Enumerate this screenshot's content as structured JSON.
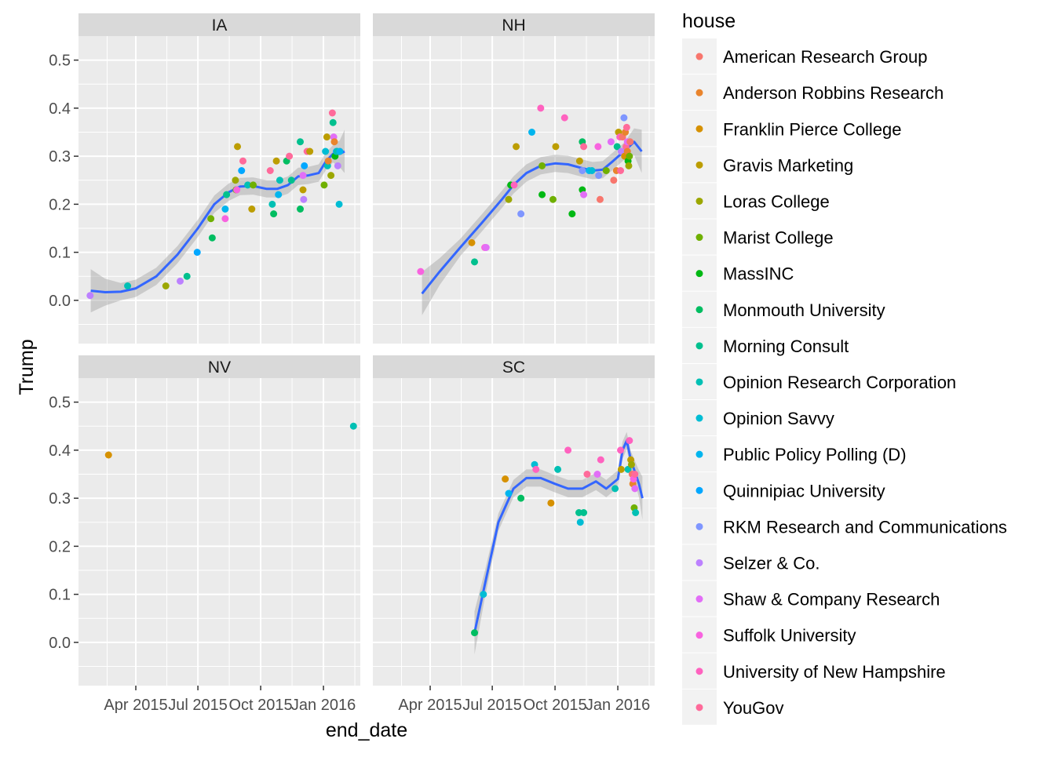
{
  "chart_data": {
    "type": "scatter",
    "xlabel": "end_date",
    "ylabel": "Trump",
    "x_ticks": [
      "Apr 2015",
      "Jul 2015",
      "Oct 2015",
      "Jan 2016"
    ],
    "y_ticks": [
      "0.0",
      "0.1",
      "0.2",
      "0.3",
      "0.4",
      "0.5"
    ],
    "ylim": [
      -0.09,
      0.55
    ],
    "grid": true,
    "legend": {
      "title": "house",
      "placement": "right",
      "entries": [
        {
          "name": "American Research Group",
          "color": "#F8766D"
        },
        {
          "name": "Anderson Robbins Research",
          "color": "#E9842C"
        },
        {
          "name": "Franklin Pierce College",
          "color": "#D69100"
        },
        {
          "name": "Gravis Marketing",
          "color": "#BC9D00"
        },
        {
          "name": "Loras College",
          "color": "#9CA700"
        },
        {
          "name": "Marist College",
          "color": "#6FB000"
        },
        {
          "name": "MassINC",
          "color": "#00B813"
        },
        {
          "name": "Monmouth University",
          "color": "#00BD61"
        },
        {
          "name": "Morning Consult",
          "color": "#00C08E"
        },
        {
          "name": "Opinion Research Corporation",
          "color": "#00C0B4"
        },
        {
          "name": "Opinion Savvy",
          "color": "#00BDD4"
        },
        {
          "name": "Public Policy Polling (D)",
          "color": "#00B5EE"
        },
        {
          "name": "Quinnipiac University",
          "color": "#00A7FF"
        },
        {
          "name": "RKM Research and Communications",
          "color": "#7F96FF"
        },
        {
          "name": "Selzer & Co.",
          "color": "#BC81FF"
        },
        {
          "name": "Shaw & Company Research",
          "color": "#E26EF7"
        },
        {
          "name": "Suffolk University",
          "color": "#F863DF"
        },
        {
          "name": "University of New Hampshire",
          "color": "#FF62BF"
        },
        {
          "name": "YouGov",
          "color": "#FF6A9A"
        }
      ]
    },
    "smooth_color": "#3366FF",
    "band_color": "#999999",
    "facets": [
      {
        "label": "IA",
        "smooth": [
          [
            "2015-01-25",
            0.02
          ],
          [
            "2015-02-15",
            0.017
          ],
          [
            "2015-03-10",
            0.018
          ],
          [
            "2015-04-01",
            0.025
          ],
          [
            "2015-05-01",
            0.05
          ],
          [
            "2015-06-01",
            0.095
          ],
          [
            "2015-07-01",
            0.15
          ],
          [
            "2015-07-25",
            0.2
          ],
          [
            "2015-08-15",
            0.225
          ],
          [
            "2015-09-01",
            0.237
          ],
          [
            "2015-09-20",
            0.238
          ],
          [
            "2015-10-10",
            0.232
          ],
          [
            "2015-10-25",
            0.232
          ],
          [
            "2015-11-10",
            0.24
          ],
          [
            "2015-11-25",
            0.258
          ],
          [
            "2015-12-10",
            0.26
          ],
          [
            "2015-12-25",
            0.265
          ],
          [
            "2016-01-05",
            0.29
          ],
          [
            "2016-01-15",
            0.305
          ],
          [
            "2016-01-25",
            0.305
          ],
          [
            "2016-02-01",
            0.31
          ]
        ],
        "points": [
          {
            "x": "2015-01-24",
            "y": 0.01,
            "c": 14
          },
          {
            "x": "2015-03-20",
            "y": 0.03,
            "c": 9
          },
          {
            "x": "2015-05-15",
            "y": 0.03,
            "c": 4
          },
          {
            "x": "2015-06-05",
            "y": 0.04,
            "c": 14
          },
          {
            "x": "2015-06-15",
            "y": 0.05,
            "c": 8
          },
          {
            "x": "2015-06-30",
            "y": 0.1,
            "c": 12
          },
          {
            "x": "2015-07-20",
            "y": 0.17,
            "c": 5
          },
          {
            "x": "2015-07-22",
            "y": 0.13,
            "c": 7
          },
          {
            "x": "2015-08-10",
            "y": 0.19,
            "c": 11
          },
          {
            "x": "2015-08-10",
            "y": 0.17,
            "c": 16
          },
          {
            "x": "2015-08-12",
            "y": 0.22,
            "c": 8
          },
          {
            "x": "2015-08-25",
            "y": 0.25,
            "c": 4
          },
          {
            "x": "2015-08-26",
            "y": 0.23,
            "c": 5
          },
          {
            "x": "2015-08-28",
            "y": 0.32,
            "c": 3
          },
          {
            "x": "2015-08-27",
            "y": 0.23,
            "c": 16
          },
          {
            "x": "2015-09-03",
            "y": 0.27,
            "c": 12
          },
          {
            "x": "2015-09-05",
            "y": 0.29,
            "c": 18
          },
          {
            "x": "2015-09-12",
            "y": 0.24,
            "c": 9
          },
          {
            "x": "2015-09-18",
            "y": 0.19,
            "c": 3
          },
          {
            "x": "2015-09-20",
            "y": 0.24,
            "c": 5
          },
          {
            "x": "2015-10-15",
            "y": 0.27,
            "c": 18
          },
          {
            "x": "2015-10-18",
            "y": 0.2,
            "c": 9
          },
          {
            "x": "2015-10-20",
            "y": 0.18,
            "c": 7
          },
          {
            "x": "2015-10-24",
            "y": 0.29,
            "c": 3
          },
          {
            "x": "2015-10-27",
            "y": 0.22,
            "c": 11
          },
          {
            "x": "2015-10-29",
            "y": 0.25,
            "c": 9
          },
          {
            "x": "2015-11-08",
            "y": 0.29,
            "c": 7
          },
          {
            "x": "2015-11-12",
            "y": 0.3,
            "c": 18
          },
          {
            "x": "2015-11-15",
            "y": 0.25,
            "c": 8
          },
          {
            "x": "2015-11-28",
            "y": 0.33,
            "c": 8
          },
          {
            "x": "2015-11-28",
            "y": 0.19,
            "c": 7
          },
          {
            "x": "2015-12-02",
            "y": 0.26,
            "c": 15
          },
          {
            "x": "2015-12-02",
            "y": 0.23,
            "c": 3
          },
          {
            "x": "2015-12-03",
            "y": 0.21,
            "c": 14
          },
          {
            "x": "2015-12-04",
            "y": 0.28,
            "c": 12
          },
          {
            "x": "2015-12-08",
            "y": 0.31,
            "c": 18
          },
          {
            "x": "2015-12-12",
            "y": 0.31,
            "c": 3
          },
          {
            "x": "2016-01-02",
            "y": 0.24,
            "c": 5
          },
          {
            "x": "2016-01-04",
            "y": 0.31,
            "c": 10
          },
          {
            "x": "2016-01-06",
            "y": 0.34,
            "c": 3
          },
          {
            "x": "2016-01-07",
            "y": 0.28,
            "c": 9
          },
          {
            "x": "2016-01-08",
            "y": 0.29,
            "c": 1
          },
          {
            "x": "2016-01-12",
            "y": 0.26,
            "c": 4
          },
          {
            "x": "2016-01-14",
            "y": 0.39,
            "c": 18
          },
          {
            "x": "2016-01-15",
            "y": 0.37,
            "c": 8
          },
          {
            "x": "2016-01-16",
            "y": 0.34,
            "c": 15
          },
          {
            "x": "2016-01-17",
            "y": 0.33,
            "c": 1
          },
          {
            "x": "2016-01-18",
            "y": 0.3,
            "c": 6
          },
          {
            "x": "2016-01-20",
            "y": 0.31,
            "c": 12
          },
          {
            "x": "2016-01-21",
            "y": 0.31,
            "c": 9
          },
          {
            "x": "2016-01-22",
            "y": 0.28,
            "c": 14
          },
          {
            "x": "2016-01-24",
            "y": 0.2,
            "c": 10
          },
          {
            "x": "2016-01-25",
            "y": 0.31,
            "c": 11
          }
        ]
      },
      {
        "label": "NH",
        "smooth": [
          [
            "2015-03-20",
            0.014
          ],
          [
            "2015-04-15",
            0.06
          ],
          [
            "2015-05-15",
            0.11
          ],
          [
            "2015-06-15",
            0.16
          ],
          [
            "2015-07-15",
            0.21
          ],
          [
            "2015-08-01",
            0.24
          ],
          [
            "2015-08-20",
            0.265
          ],
          [
            "2015-09-10",
            0.28
          ],
          [
            "2015-10-01",
            0.285
          ],
          [
            "2015-10-20",
            0.283
          ],
          [
            "2015-11-10",
            0.275
          ],
          [
            "2015-11-25",
            0.27
          ],
          [
            "2015-12-10",
            0.272
          ],
          [
            "2015-12-25",
            0.29
          ],
          [
            "2016-01-10",
            0.31
          ],
          [
            "2016-01-25",
            0.33
          ],
          [
            "2016-02-05",
            0.31
          ]
        ],
        "points": [
          {
            "x": "2015-03-18",
            "y": 0.06,
            "c": 16
          },
          {
            "x": "2015-06-01",
            "y": 0.12,
            "c": 2
          },
          {
            "x": "2015-06-05",
            "y": 0.08,
            "c": 8
          },
          {
            "x": "2015-06-20",
            "y": 0.11,
            "c": 16
          },
          {
            "x": "2015-06-22",
            "y": 0.11,
            "c": 15
          },
          {
            "x": "2015-07-25",
            "y": 0.21,
            "c": 4
          },
          {
            "x": "2015-07-28",
            "y": 0.24,
            "c": 6
          },
          {
            "x": "2015-08-02",
            "y": 0.24,
            "c": 17
          },
          {
            "x": "2015-08-05",
            "y": 0.32,
            "c": 3
          },
          {
            "x": "2015-08-12",
            "y": 0.18,
            "c": 13
          },
          {
            "x": "2015-08-28",
            "y": 0.35,
            "c": 11
          },
          {
            "x": "2015-09-10",
            "y": 0.4,
            "c": 17
          },
          {
            "x": "2015-09-12",
            "y": 0.22,
            "c": 6
          },
          {
            "x": "2015-09-12",
            "y": 0.28,
            "c": 5
          },
          {
            "x": "2015-09-28",
            "y": 0.21,
            "c": 5
          },
          {
            "x": "2015-10-02",
            "y": 0.32,
            "c": 3
          },
          {
            "x": "2015-10-15",
            "y": 0.38,
            "c": 17
          },
          {
            "x": "2015-10-26",
            "y": 0.18,
            "c": 6
          },
          {
            "x": "2015-11-06",
            "y": 0.29,
            "c": 3
          },
          {
            "x": "2015-11-10",
            "y": 0.33,
            "c": 7
          },
          {
            "x": "2015-11-10",
            "y": 0.23,
            "c": 6
          },
          {
            "x": "2015-11-10",
            "y": 0.27,
            "c": 13
          },
          {
            "x": "2015-11-12",
            "y": 0.32,
            "c": 18
          },
          {
            "x": "2015-11-12",
            "y": 0.22,
            "c": 15
          },
          {
            "x": "2015-11-20",
            "y": 0.27,
            "c": 11
          },
          {
            "x": "2015-11-24",
            "y": 0.27,
            "c": 10
          },
          {
            "x": "2015-12-03",
            "y": 0.32,
            "c": 16
          },
          {
            "x": "2015-12-04",
            "y": 0.26,
            "c": 13
          },
          {
            "x": "2015-12-06",
            "y": 0.21,
            "c": 0
          },
          {
            "x": "2015-12-15",
            "y": 0.27,
            "c": 5
          },
          {
            "x": "2015-12-22",
            "y": 0.33,
            "c": 15
          },
          {
            "x": "2015-12-26",
            "y": 0.25,
            "c": 0
          },
          {
            "x": "2015-12-30",
            "y": 0.27,
            "c": 1
          },
          {
            "x": "2015-12-31",
            "y": 0.32,
            "c": 8
          },
          {
            "x": "2016-01-02",
            "y": 0.35,
            "c": 3
          },
          {
            "x": "2016-01-04",
            "y": 0.34,
            "c": 17
          },
          {
            "x": "2016-01-05",
            "y": 0.27,
            "c": 18
          },
          {
            "x": "2016-01-06",
            "y": 0.31,
            "c": 14
          },
          {
            "x": "2016-01-08",
            "y": 0.34,
            "c": 0
          },
          {
            "x": "2016-01-10",
            "y": 0.38,
            "c": 13
          },
          {
            "x": "2016-01-11",
            "y": 0.3,
            "c": 2
          },
          {
            "x": "2016-01-12",
            "y": 0.35,
            "c": 1
          },
          {
            "x": "2016-01-13",
            "y": 0.32,
            "c": 18
          },
          {
            "x": "2016-01-14",
            "y": 0.36,
            "c": 18
          },
          {
            "x": "2016-01-15",
            "y": 0.31,
            "c": 1
          },
          {
            "x": "2016-01-15",
            "y": 0.33,
            "c": 15
          },
          {
            "x": "2016-01-16",
            "y": 0.29,
            "c": 6
          },
          {
            "x": "2016-01-17",
            "y": 0.28,
            "c": 4
          },
          {
            "x": "2016-01-18",
            "y": 0.3,
            "c": 5
          },
          {
            "x": "2016-01-19",
            "y": 0.33,
            "c": 0
          }
        ]
      },
      {
        "label": "NV",
        "smooth": [],
        "points": [
          {
            "x": "2015-02-20",
            "y": 0.39,
            "c": 2
          },
          {
            "x": "2016-02-14",
            "y": 0.45,
            "c": 9
          }
        ]
      },
      {
        "label": "SC",
        "smooth": [
          [
            "2015-06-05",
            0.02
          ],
          [
            "2015-06-20",
            0.12
          ],
          [
            "2015-07-10",
            0.25
          ],
          [
            "2015-08-01",
            0.32
          ],
          [
            "2015-08-20",
            0.342
          ],
          [
            "2015-09-10",
            0.342
          ],
          [
            "2015-10-01",
            0.33
          ],
          [
            "2015-10-20",
            0.32
          ],
          [
            "2015-11-10",
            0.32
          ],
          [
            "2015-11-30",
            0.335
          ],
          [
            "2015-12-15",
            0.32
          ],
          [
            "2016-01-01",
            0.34
          ],
          [
            "2016-01-08",
            0.4
          ],
          [
            "2016-01-14",
            0.42
          ],
          [
            "2016-01-20",
            0.38
          ],
          [
            "2016-02-01",
            0.33
          ],
          [
            "2016-02-06",
            0.3
          ]
        ],
        "points": [
          {
            "x": "2015-06-05",
            "y": 0.02,
            "c": 7
          },
          {
            "x": "2015-06-18",
            "y": 0.1,
            "c": 10
          },
          {
            "x": "2015-07-20",
            "y": 0.34,
            "c": 2
          },
          {
            "x": "2015-07-25",
            "y": 0.31,
            "c": 11
          },
          {
            "x": "2015-08-12",
            "y": 0.3,
            "c": 7
          },
          {
            "x": "2015-09-01",
            "y": 0.37,
            "c": 10
          },
          {
            "x": "2015-09-03",
            "y": 0.36,
            "c": 17
          },
          {
            "x": "2015-09-25",
            "y": 0.29,
            "c": 2
          },
          {
            "x": "2015-10-05",
            "y": 0.36,
            "c": 9
          },
          {
            "x": "2015-10-20",
            "y": 0.4,
            "c": 17
          },
          {
            "x": "2015-11-05",
            "y": 0.27,
            "c": 8
          },
          {
            "x": "2015-11-07",
            "y": 0.25,
            "c": 10
          },
          {
            "x": "2015-11-12",
            "y": 0.27,
            "c": 8
          },
          {
            "x": "2015-11-17",
            "y": 0.35,
            "c": 18
          },
          {
            "x": "2015-12-02",
            "y": 0.35,
            "c": 15
          },
          {
            "x": "2015-12-07",
            "y": 0.38,
            "c": 17
          },
          {
            "x": "2015-12-28",
            "y": 0.32,
            "c": 9
          },
          {
            "x": "2016-01-05",
            "y": 0.4,
            "c": 17
          },
          {
            "x": "2016-01-06",
            "y": 0.36,
            "c": 3
          },
          {
            "x": "2016-01-16",
            "y": 0.36,
            "c": 9
          },
          {
            "x": "2016-01-18",
            "y": 0.42,
            "c": 17
          },
          {
            "x": "2016-01-20",
            "y": 0.38,
            "c": 3
          },
          {
            "x": "2016-01-21",
            "y": 0.37,
            "c": 4
          },
          {
            "x": "2016-01-22",
            "y": 0.35,
            "c": 0
          },
          {
            "x": "2016-01-23",
            "y": 0.33,
            "c": 1
          },
          {
            "x": "2016-01-24",
            "y": 0.34,
            "c": 16
          },
          {
            "x": "2016-01-25",
            "y": 0.28,
            "c": 5
          },
          {
            "x": "2016-01-26",
            "y": 0.32,
            "c": 15
          },
          {
            "x": "2016-01-27",
            "y": 0.27,
            "c": 9
          },
          {
            "x": "2016-01-26",
            "y": 0.35,
            "c": 18
          }
        ]
      }
    ]
  }
}
